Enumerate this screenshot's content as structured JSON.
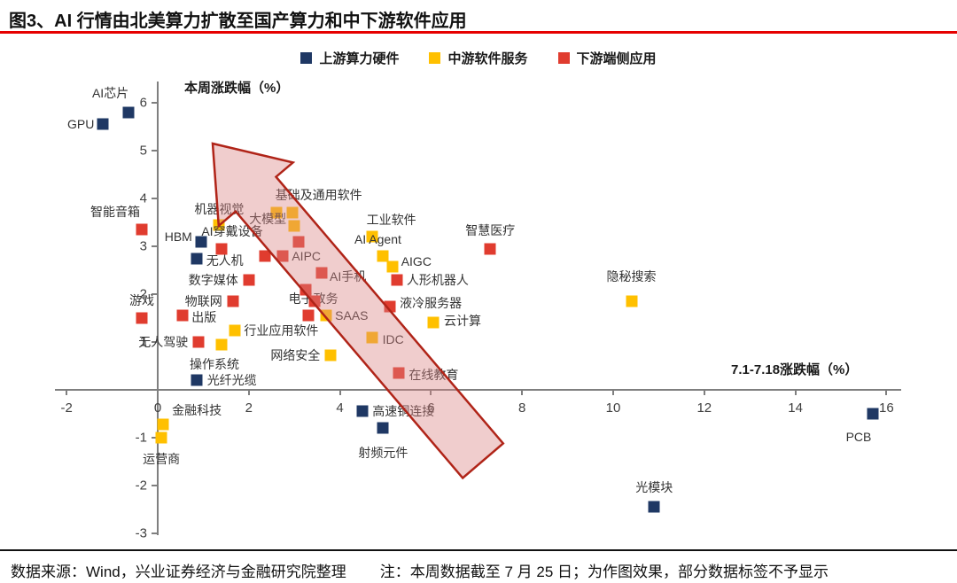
{
  "header": {
    "title": "图3、AI 行情由北美算力扩散至国产算力和中下游软件应用",
    "underline_color": "#e60000"
  },
  "legend": [
    {
      "label": "上游算力硬件",
      "color": "#1F3864"
    },
    {
      "label": "中游软件服务",
      "color": "#FFC000"
    },
    {
      "label": "下游端侧应用",
      "color": "#E03C2F"
    }
  ],
  "chart_data": {
    "type": "scatter",
    "title": "",
    "xlabel": "7.1-7.18涨跌幅（%）",
    "ylabel": "本周涨跌幅（%）",
    "xlim": [
      -2.3,
      16.4
    ],
    "ylim": [
      -3.3,
      6.5
    ],
    "x_ticks": [
      -2,
      0,
      2,
      4,
      6,
      8,
      10,
      12,
      14,
      16
    ],
    "y_ticks": [
      6,
      5,
      4,
      3,
      2,
      1,
      -1,
      -2,
      -3
    ],
    "grid": false,
    "legend_position": "top",
    "annotation_arrow": {
      "direction": "up-left",
      "fill": "rgba(217,130,130,0.4)",
      "stroke": "#b02418"
    },
    "series": [
      {
        "name": "上游算力硬件",
        "color": "#1F3864",
        "points": [
          {
            "label": "GPU",
            "x": -1.2,
            "y": 5.55,
            "anchor": "end",
            "dx": -10,
            "dy": 0
          },
          {
            "label": "AI芯片",
            "x": -0.65,
            "y": 5.8,
            "anchor": "middle",
            "dx": -20,
            "dy": -22
          },
          {
            "label": "HBM",
            "x": 0.95,
            "y": 3.1,
            "anchor": "end",
            "dx": -10,
            "dy": -6
          },
          {
            "label": "无人机",
            "x": 0.85,
            "y": 2.75,
            "anchor": "start",
            "dx": 11,
            "dy": 2
          },
          {
            "label": "光纤光缆",
            "x": 0.85,
            "y": 0.2,
            "anchor": "start",
            "dx": 12,
            "dy": 0
          },
          {
            "label": "高速铜连接",
            "x": 4.5,
            "y": -0.45,
            "anchor": "start",
            "dx": 11,
            "dy": 0
          },
          {
            "label": "射频元件",
            "x": 4.95,
            "y": -0.8,
            "anchor": "middle",
            "dx": 0,
            "dy": 28
          },
          {
            "label": "光模块",
            "x": 10.9,
            "y": -2.45,
            "anchor": "middle",
            "dx": 0,
            "dy": -22
          },
          {
            "label": "PCB",
            "x": 15.7,
            "y": -0.5,
            "anchor": "middle",
            "dx": -16,
            "dy": 26
          }
        ]
      },
      {
        "name": "中游软件服务",
        "color": "#FFC000",
        "points": [
          {
            "label": "机器视觉",
            "x": 1.35,
            "y": 3.45,
            "anchor": "middle",
            "dx": 0,
            "dy": -18
          },
          {
            "label": "基础及通用软件",
            "x": 2.6,
            "y": 3.7,
            "anchor": "middle",
            "dx": 48,
            "dy": -20
          },
          {
            "label": "",
            "x": 2.95,
            "y": 3.7
          },
          {
            "label": "大模型",
            "x": 3.0,
            "y": 3.42,
            "anchor": "end",
            "dx": -9,
            "dy": -8
          },
          {
            "label": "工业软件",
            "x": 4.7,
            "y": 3.2,
            "anchor": "middle",
            "dx": 22,
            "dy": -19
          },
          {
            "label": "AI Agent",
            "x": 4.95,
            "y": 2.8,
            "anchor": "middle",
            "dx": -6,
            "dy": -19
          },
          {
            "label": "AIGC",
            "x": 5.15,
            "y": 2.58,
            "anchor": "start",
            "dx": 10,
            "dy": -6
          },
          {
            "label": "SAAS",
            "x": 3.7,
            "y": 1.55,
            "anchor": "start",
            "dx": 10,
            "dy": 0
          },
          {
            "label": "云计算",
            "x": 6.05,
            "y": 1.4,
            "anchor": "start",
            "dx": 12,
            "dy": -2
          },
          {
            "label": "IDC",
            "x": 4.7,
            "y": 1.1,
            "anchor": "start",
            "dx": 12,
            "dy": 2
          },
          {
            "label": "网络安全",
            "x": 3.8,
            "y": 0.72,
            "anchor": "end",
            "dx": -12,
            "dy": 0
          },
          {
            "label": "行业应用软件",
            "x": 1.7,
            "y": 1.25,
            "anchor": "start",
            "dx": 10,
            "dy": 0
          },
          {
            "label": "操作系统",
            "x": 1.4,
            "y": 0.95,
            "anchor": "middle",
            "dx": -8,
            "dy": 22
          },
          {
            "label": "金融科技",
            "x": 0.12,
            "y": -0.72,
            "anchor": "middle",
            "dx": 38,
            "dy": -16
          },
          {
            "label": "运营商",
            "x": 0.08,
            "y": -1.0,
            "anchor": "middle",
            "dx": 0,
            "dy": 24
          },
          {
            "label": "隐秘搜索",
            "x": 10.4,
            "y": 1.85,
            "anchor": "middle",
            "dx": 0,
            "dy": -28
          }
        ]
      },
      {
        "name": "下游端侧应用",
        "color": "#E03C2F",
        "points": [
          {
            "label": "智能音箱",
            "x": -0.35,
            "y": 3.35,
            "anchor": "end",
            "dx": -2,
            "dy": -20
          },
          {
            "label": "AI穿戴设备",
            "x": 1.4,
            "y": 2.95,
            "anchor": "middle",
            "dx": 12,
            "dy": -20
          },
          {
            "label": "AIPC",
            "x": 2.75,
            "y": 2.8,
            "anchor": "start",
            "dx": 10,
            "dy": 0
          },
          {
            "label": "",
            "x": 2.35,
            "y": 2.8
          },
          {
            "label": "AI手机",
            "x": 3.6,
            "y": 2.45,
            "anchor": "start",
            "dx": 9,
            "dy": 4
          },
          {
            "label": "数字媒体",
            "x": 2.0,
            "y": 2.3,
            "anchor": "end",
            "dx": -12,
            "dy": 0
          },
          {
            "label": "人形机器人",
            "x": 5.25,
            "y": 2.3,
            "anchor": "start",
            "dx": 11,
            "dy": 0
          },
          {
            "label": "物联网",
            "x": 1.65,
            "y": 1.85,
            "anchor": "end",
            "dx": -12,
            "dy": 0
          },
          {
            "label": "电子政务",
            "x": 3.3,
            "y": 1.55,
            "anchor": "middle",
            "dx": 6,
            "dy": -19
          },
          {
            "label": "液冷服务器",
            "x": 5.1,
            "y": 1.75,
            "anchor": "start",
            "dx": 11,
            "dy": -4
          },
          {
            "label": "游戏",
            "x": -0.35,
            "y": 1.5,
            "anchor": "middle",
            "dx": 0,
            "dy": -20
          },
          {
            "label": "出版",
            "x": 0.55,
            "y": 1.55,
            "anchor": "start",
            "dx": 10,
            "dy": 2
          },
          {
            "label": "无人驾驶",
            "x": 0.9,
            "y": 1.0,
            "anchor": "end",
            "dx": -12,
            "dy": 0
          },
          {
            "label": "在线教育",
            "x": 5.3,
            "y": 0.35,
            "anchor": "start",
            "dx": 11,
            "dy": 2
          },
          {
            "label": "智慧医疗",
            "x": 7.3,
            "y": 2.95,
            "anchor": "middle",
            "dx": 0,
            "dy": -21
          },
          {
            "label": "",
            "x": 3.25,
            "y": 2.1
          },
          {
            "label": "",
            "x": 3.45,
            "y": 1.85
          },
          {
            "label": "",
            "x": 3.1,
            "y": 3.1
          }
        ]
      }
    ]
  },
  "footer": {
    "source": "数据来源：Wind，兴业证券经济与金融研究院整理",
    "note": "注：本周数据截至 7 月 25 日；为作图效果，部分数据标签不予显示"
  }
}
